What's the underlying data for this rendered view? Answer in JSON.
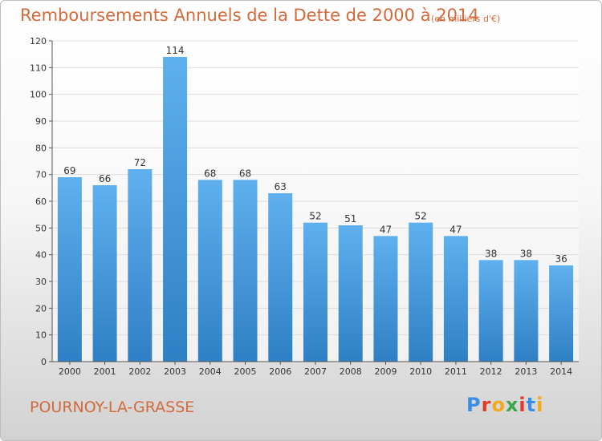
{
  "header": {
    "title": "Remboursements Annuels de la Dette de 2000 à 2014",
    "unit": "(en milliers d'€)"
  },
  "footer": {
    "city": "POURNOY-LA-GRASSE",
    "logo": [
      "P",
      "r",
      "o",
      "x",
      "i",
      "t",
      "i"
    ],
    "logo_colors": [
      "#3a8ee6",
      "#e23b2a",
      "#f2a91a",
      "#3aa84a",
      "#e23b2a",
      "#3a8ee6",
      "#f2a91a"
    ]
  },
  "colors": {
    "bar_top": "#5fb0ee",
    "bar_bottom": "#2f7fc4",
    "grid": "#dcdcdc",
    "axis": "#555555",
    "text": "#333333",
    "accent": "#d26a3c"
  },
  "chart_data": {
    "type": "bar",
    "title": "Remboursements Annuels de la Dette de 2000 à 2014",
    "categories": [
      "2000",
      "2001",
      "2002",
      "2003",
      "2004",
      "2005",
      "2006",
      "2007",
      "2008",
      "2009",
      "2010",
      "2011",
      "2012",
      "2013",
      "2014"
    ],
    "values": [
      69,
      66,
      72,
      114,
      68,
      68,
      63,
      52,
      51,
      47,
      52,
      47,
      38,
      38,
      36
    ],
    "ylim": [
      0,
      120
    ],
    "yticks": [
      0,
      10,
      20,
      30,
      40,
      50,
      60,
      70,
      80,
      90,
      100,
      110,
      120
    ],
    "grid": true,
    "legend": "none"
  }
}
